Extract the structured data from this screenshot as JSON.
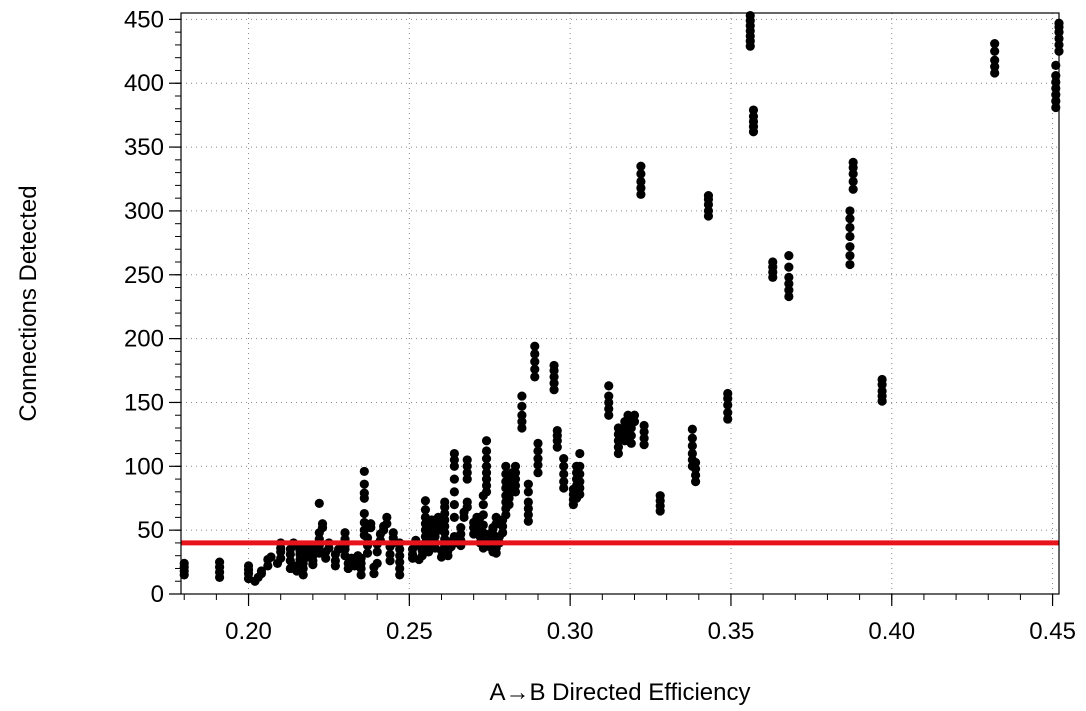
{
  "chart_data": {
    "type": "scatter",
    "title": "",
    "xlabel": "A→B Directed Efficiency",
    "ylabel": "Connections Detected",
    "xlim": [
      0.179,
      0.452
    ],
    "ylim": [
      0,
      455
    ],
    "x_ticks": [
      0.2,
      0.25,
      0.3,
      0.35,
      0.4,
      0.45
    ],
    "x_tick_labels": [
      "0.20",
      "0.25",
      "0.30",
      "0.35",
      "0.40",
      "0.45"
    ],
    "x_minor_step": 0.01,
    "y_ticks": [
      0,
      50,
      100,
      150,
      200,
      250,
      300,
      350,
      400,
      450
    ],
    "y_tick_labels": [
      "0",
      "50",
      "100",
      "150",
      "200",
      "250",
      "300",
      "350",
      "400",
      "450"
    ],
    "y_minor_step": 10,
    "grid": true,
    "marker_color": "#000000",
    "threshold_line": {
      "y": 40,
      "color": "#e8141c"
    },
    "points": [
      [
        0.18,
        15
      ],
      [
        0.18,
        18
      ],
      [
        0.18,
        21
      ],
      [
        0.18,
        24
      ],
      [
        0.191,
        13
      ],
      [
        0.191,
        17
      ],
      [
        0.191,
        21
      ],
      [
        0.191,
        25
      ],
      [
        0.2,
        12
      ],
      [
        0.2,
        16
      ],
      [
        0.2,
        19
      ],
      [
        0.2,
        22
      ],
      [
        0.202,
        10
      ],
      [
        0.203,
        13
      ],
      [
        0.204,
        16
      ],
      [
        0.204,
        18
      ],
      [
        0.206,
        22
      ],
      [
        0.206,
        27
      ],
      [
        0.207,
        29
      ],
      [
        0.209,
        24
      ],
      [
        0.21,
        28
      ],
      [
        0.21,
        33
      ],
      [
        0.21,
        36
      ],
      [
        0.21,
        40
      ],
      [
        0.213,
        20
      ],
      [
        0.213,
        26
      ],
      [
        0.213,
        31
      ],
      [
        0.213,
        35
      ],
      [
        0.214,
        38
      ],
      [
        0.214,
        40
      ],
      [
        0.215,
        18
      ],
      [
        0.215,
        22
      ],
      [
        0.216,
        27
      ],
      [
        0.216,
        31
      ],
      [
        0.216,
        34
      ],
      [
        0.216,
        36
      ],
      [
        0.217,
        15
      ],
      [
        0.217,
        20
      ],
      [
        0.217,
        24
      ],
      [
        0.218,
        29
      ],
      [
        0.218,
        33
      ],
      [
        0.218,
        38
      ],
      [
        0.22,
        23
      ],
      [
        0.22,
        26
      ],
      [
        0.22,
        30
      ],
      [
        0.22,
        35
      ],
      [
        0.222,
        32
      ],
      [
        0.222,
        38
      ],
      [
        0.222,
        43
      ],
      [
        0.222,
        48
      ],
      [
        0.223,
        52
      ],
      [
        0.223,
        55
      ],
      [
        0.222,
        71
      ],
      [
        0.224,
        28
      ],
      [
        0.224,
        33
      ],
      [
        0.225,
        36
      ],
      [
        0.225,
        40
      ],
      [
        0.227,
        22
      ],
      [
        0.227,
        26
      ],
      [
        0.227,
        31
      ],
      [
        0.228,
        35
      ],
      [
        0.23,
        30
      ],
      [
        0.23,
        35
      ],
      [
        0.23,
        38
      ],
      [
        0.23,
        43
      ],
      [
        0.23,
        48
      ],
      [
        0.231,
        20
      ],
      [
        0.231,
        24
      ],
      [
        0.232,
        28
      ],
      [
        0.233,
        22
      ],
      [
        0.233,
        26
      ],
      [
        0.234,
        30
      ],
      [
        0.235,
        15
      ],
      [
        0.235,
        20
      ],
      [
        0.235,
        24
      ],
      [
        0.235,
        28
      ],
      [
        0.236,
        46
      ],
      [
        0.236,
        50
      ],
      [
        0.236,
        56
      ],
      [
        0.236,
        63
      ],
      [
        0.236,
        75
      ],
      [
        0.236,
        79
      ],
      [
        0.236,
        86
      ],
      [
        0.236,
        96
      ],
      [
        0.237,
        32
      ],
      [
        0.237,
        38
      ],
      [
        0.237,
        44
      ],
      [
        0.238,
        52
      ],
      [
        0.238,
        55
      ],
      [
        0.239,
        16
      ],
      [
        0.239,
        21
      ],
      [
        0.24,
        24
      ],
      [
        0.24,
        33
      ],
      [
        0.24,
        39
      ],
      [
        0.241,
        42
      ],
      [
        0.241,
        47
      ],
      [
        0.242,
        50
      ],
      [
        0.242,
        53
      ],
      [
        0.243,
        55
      ],
      [
        0.243,
        60
      ],
      [
        0.244,
        26
      ],
      [
        0.244,
        31
      ],
      [
        0.244,
        37
      ],
      [
        0.245,
        40
      ],
      [
        0.245,
        44
      ],
      [
        0.245,
        48
      ],
      [
        0.247,
        15
      ],
      [
        0.247,
        20
      ],
      [
        0.247,
        25
      ],
      [
        0.247,
        30
      ],
      [
        0.247,
        35
      ],
      [
        0.247,
        40
      ],
      [
        0.251,
        28
      ],
      [
        0.251,
        31
      ],
      [
        0.251,
        35
      ],
      [
        0.252,
        38
      ],
      [
        0.252,
        42
      ],
      [
        0.253,
        27
      ],
      [
        0.254,
        30
      ],
      [
        0.254,
        34
      ],
      [
        0.254,
        37
      ],
      [
        0.255,
        40
      ],
      [
        0.255,
        45
      ],
      [
        0.255,
        50
      ],
      [
        0.255,
        55
      ],
      [
        0.255,
        60
      ],
      [
        0.255,
        66
      ],
      [
        0.255,
        73
      ],
      [
        0.256,
        33
      ],
      [
        0.256,
        38
      ],
      [
        0.257,
        42
      ],
      [
        0.257,
        48
      ],
      [
        0.257,
        53
      ],
      [
        0.257,
        58
      ],
      [
        0.258,
        36
      ],
      [
        0.258,
        40
      ],
      [
        0.258,
        45
      ],
      [
        0.259,
        50
      ],
      [
        0.259,
        55
      ],
      [
        0.259,
        60
      ],
      [
        0.26,
        29
      ],
      [
        0.26,
        34
      ],
      [
        0.261,
        38
      ],
      [
        0.261,
        43
      ],
      [
        0.261,
        48
      ],
      [
        0.261,
        53
      ],
      [
        0.261,
        58
      ],
      [
        0.261,
        63
      ],
      [
        0.261,
        68
      ],
      [
        0.261,
        72
      ],
      [
        0.262,
        30
      ],
      [
        0.262,
        34
      ],
      [
        0.263,
        37
      ],
      [
        0.263,
        41
      ],
      [
        0.264,
        40
      ],
      [
        0.264,
        45
      ],
      [
        0.264,
        60
      ],
      [
        0.264,
        70
      ],
      [
        0.264,
        80
      ],
      [
        0.264,
        90
      ],
      [
        0.264,
        100
      ],
      [
        0.264,
        105
      ],
      [
        0.264,
        110
      ],
      [
        0.266,
        38
      ],
      [
        0.266,
        42
      ],
      [
        0.266,
        47
      ],
      [
        0.266,
        52
      ],
      [
        0.267,
        60
      ],
      [
        0.267,
        64
      ],
      [
        0.268,
        68
      ],
      [
        0.268,
        72
      ],
      [
        0.268,
        90
      ],
      [
        0.268,
        95
      ],
      [
        0.268,
        100
      ],
      [
        0.268,
        105
      ],
      [
        0.27,
        47
      ],
      [
        0.27,
        52
      ],
      [
        0.27,
        56
      ],
      [
        0.271,
        60
      ],
      [
        0.272,
        40
      ],
      [
        0.272,
        45
      ],
      [
        0.272,
        50
      ],
      [
        0.272,
        55
      ],
      [
        0.272,
        60
      ],
      [
        0.273,
        36
      ],
      [
        0.273,
        42
      ],
      [
        0.273,
        48
      ],
      [
        0.273,
        54
      ],
      [
        0.273,
        62
      ],
      [
        0.273,
        70
      ],
      [
        0.273,
        77
      ],
      [
        0.274,
        80
      ],
      [
        0.274,
        85
      ],
      [
        0.274,
        90
      ],
      [
        0.274,
        95
      ],
      [
        0.274,
        100
      ],
      [
        0.274,
        106
      ],
      [
        0.274,
        112
      ],
      [
        0.274,
        120
      ],
      [
        0.275,
        37
      ],
      [
        0.275,
        42
      ],
      [
        0.275,
        47
      ],
      [
        0.276,
        52
      ],
      [
        0.276,
        33
      ],
      [
        0.276,
        37
      ],
      [
        0.276,
        42
      ],
      [
        0.276,
        47
      ],
      [
        0.276,
        51
      ],
      [
        0.277,
        55
      ],
      [
        0.277,
        60
      ],
      [
        0.277,
        32
      ],
      [
        0.277,
        36
      ],
      [
        0.278,
        40
      ],
      [
        0.278,
        45
      ],
      [
        0.279,
        48
      ],
      [
        0.279,
        53
      ],
      [
        0.279,
        58
      ],
      [
        0.28,
        62
      ],
      [
        0.28,
        67
      ],
      [
        0.28,
        72
      ],
      [
        0.28,
        77
      ],
      [
        0.28,
        83
      ],
      [
        0.28,
        88
      ],
      [
        0.28,
        94
      ],
      [
        0.28,
        100
      ],
      [
        0.281,
        70
      ],
      [
        0.281,
        75
      ],
      [
        0.282,
        80
      ],
      [
        0.282,
        85
      ],
      [
        0.282,
        90
      ],
      [
        0.282,
        95
      ],
      [
        0.283,
        80
      ],
      [
        0.283,
        85
      ],
      [
        0.283,
        90
      ],
      [
        0.283,
        95
      ],
      [
        0.283,
        100
      ],
      [
        0.285,
        130
      ],
      [
        0.285,
        135
      ],
      [
        0.285,
        140
      ],
      [
        0.285,
        147
      ],
      [
        0.285,
        155
      ],
      [
        0.287,
        57
      ],
      [
        0.287,
        62
      ],
      [
        0.287,
        67
      ],
      [
        0.287,
        72
      ],
      [
        0.287,
        80
      ],
      [
        0.287,
        86
      ],
      [
        0.289,
        170
      ],
      [
        0.289,
        176
      ],
      [
        0.289,
        182
      ],
      [
        0.289,
        188
      ],
      [
        0.289,
        194
      ],
      [
        0.29,
        95
      ],
      [
        0.29,
        101
      ],
      [
        0.29,
        106
      ],
      [
        0.29,
        112
      ],
      [
        0.29,
        118
      ],
      [
        0.295,
        160
      ],
      [
        0.295,
        165
      ],
      [
        0.295,
        170
      ],
      [
        0.295,
        175
      ],
      [
        0.295,
        179
      ],
      [
        0.296,
        115
      ],
      [
        0.296,
        120
      ],
      [
        0.296,
        124
      ],
      [
        0.296,
        128
      ],
      [
        0.298,
        83
      ],
      [
        0.298,
        88
      ],
      [
        0.298,
        94
      ],
      [
        0.298,
        100
      ],
      [
        0.298,
        106
      ],
      [
        0.301,
        70
      ],
      [
        0.301,
        74
      ],
      [
        0.301,
        78
      ],
      [
        0.301,
        82
      ],
      [
        0.302,
        75
      ],
      [
        0.302,
        80
      ],
      [
        0.302,
        85
      ],
      [
        0.302,
        90
      ],
      [
        0.302,
        95
      ],
      [
        0.302,
        100
      ],
      [
        0.303,
        78
      ],
      [
        0.303,
        83
      ],
      [
        0.303,
        88
      ],
      [
        0.303,
        94
      ],
      [
        0.303,
        100
      ],
      [
        0.303,
        110
      ],
      [
        0.312,
        140
      ],
      [
        0.312,
        145
      ],
      [
        0.312,
        150
      ],
      [
        0.312,
        155
      ],
      [
        0.312,
        163
      ],
      [
        0.315,
        110
      ],
      [
        0.315,
        115
      ],
      [
        0.315,
        120
      ],
      [
        0.315,
        125
      ],
      [
        0.315,
        130
      ],
      [
        0.317,
        120
      ],
      [
        0.317,
        125
      ],
      [
        0.317,
        130
      ],
      [
        0.317,
        135
      ],
      [
        0.318,
        120
      ],
      [
        0.318,
        125
      ],
      [
        0.318,
        130
      ],
      [
        0.318,
        135
      ],
      [
        0.318,
        140
      ],
      [
        0.319,
        118
      ],
      [
        0.319,
        124
      ],
      [
        0.319,
        130
      ],
      [
        0.32,
        135
      ],
      [
        0.32,
        140
      ],
      [
        0.322,
        313
      ],
      [
        0.322,
        318
      ],
      [
        0.322,
        323
      ],
      [
        0.322,
        329
      ],
      [
        0.322,
        335
      ],
      [
        0.323,
        117
      ],
      [
        0.323,
        122
      ],
      [
        0.323,
        127
      ],
      [
        0.323,
        132
      ],
      [
        0.328,
        65
      ],
      [
        0.328,
        69
      ],
      [
        0.328,
        73
      ],
      [
        0.328,
        77
      ],
      [
        0.338,
        100
      ],
      [
        0.338,
        105
      ],
      [
        0.338,
        110
      ],
      [
        0.338,
        116
      ],
      [
        0.338,
        122
      ],
      [
        0.338,
        129
      ],
      [
        0.339,
        88
      ],
      [
        0.339,
        93
      ],
      [
        0.339,
        98
      ],
      [
        0.339,
        103
      ],
      [
        0.343,
        296
      ],
      [
        0.343,
        300
      ],
      [
        0.343,
        305
      ],
      [
        0.343,
        309
      ],
      [
        0.343,
        312
      ],
      [
        0.349,
        137
      ],
      [
        0.349,
        142
      ],
      [
        0.349,
        148
      ],
      [
        0.349,
        153
      ],
      [
        0.349,
        157
      ],
      [
        0.356,
        429
      ],
      [
        0.356,
        433
      ],
      [
        0.356,
        437
      ],
      [
        0.356,
        441
      ],
      [
        0.356,
        445
      ],
      [
        0.356,
        449
      ],
      [
        0.356,
        453
      ],
      [
        0.357,
        362
      ],
      [
        0.357,
        366
      ],
      [
        0.357,
        370
      ],
      [
        0.357,
        374
      ],
      [
        0.357,
        379
      ],
      [
        0.363,
        248
      ],
      [
        0.363,
        252
      ],
      [
        0.363,
        256
      ],
      [
        0.363,
        260
      ],
      [
        0.368,
        233
      ],
      [
        0.368,
        238
      ],
      [
        0.368,
        243
      ],
      [
        0.368,
        248
      ],
      [
        0.368,
        256
      ],
      [
        0.368,
        265
      ],
      [
        0.387,
        258
      ],
      [
        0.387,
        265
      ],
      [
        0.387,
        272
      ],
      [
        0.387,
        280
      ],
      [
        0.387,
        287
      ],
      [
        0.387,
        294
      ],
      [
        0.387,
        300
      ],
      [
        0.388,
        317
      ],
      [
        0.388,
        323
      ],
      [
        0.388,
        329
      ],
      [
        0.388,
        334
      ],
      [
        0.388,
        338
      ],
      [
        0.397,
        151
      ],
      [
        0.397,
        155
      ],
      [
        0.397,
        159
      ],
      [
        0.397,
        164
      ],
      [
        0.397,
        168
      ],
      [
        0.432,
        408
      ],
      [
        0.432,
        413
      ],
      [
        0.432,
        418
      ],
      [
        0.432,
        425
      ],
      [
        0.432,
        431
      ],
      [
        0.451,
        381
      ],
      [
        0.451,
        386
      ],
      [
        0.451,
        391
      ],
      [
        0.451,
        396
      ],
      [
        0.451,
        401
      ],
      [
        0.451,
        406
      ],
      [
        0.451,
        414
      ],
      [
        0.452,
        425
      ],
      [
        0.452,
        430
      ],
      [
        0.452,
        435
      ],
      [
        0.452,
        440
      ],
      [
        0.452,
        444
      ],
      [
        0.452,
        447
      ]
    ]
  }
}
